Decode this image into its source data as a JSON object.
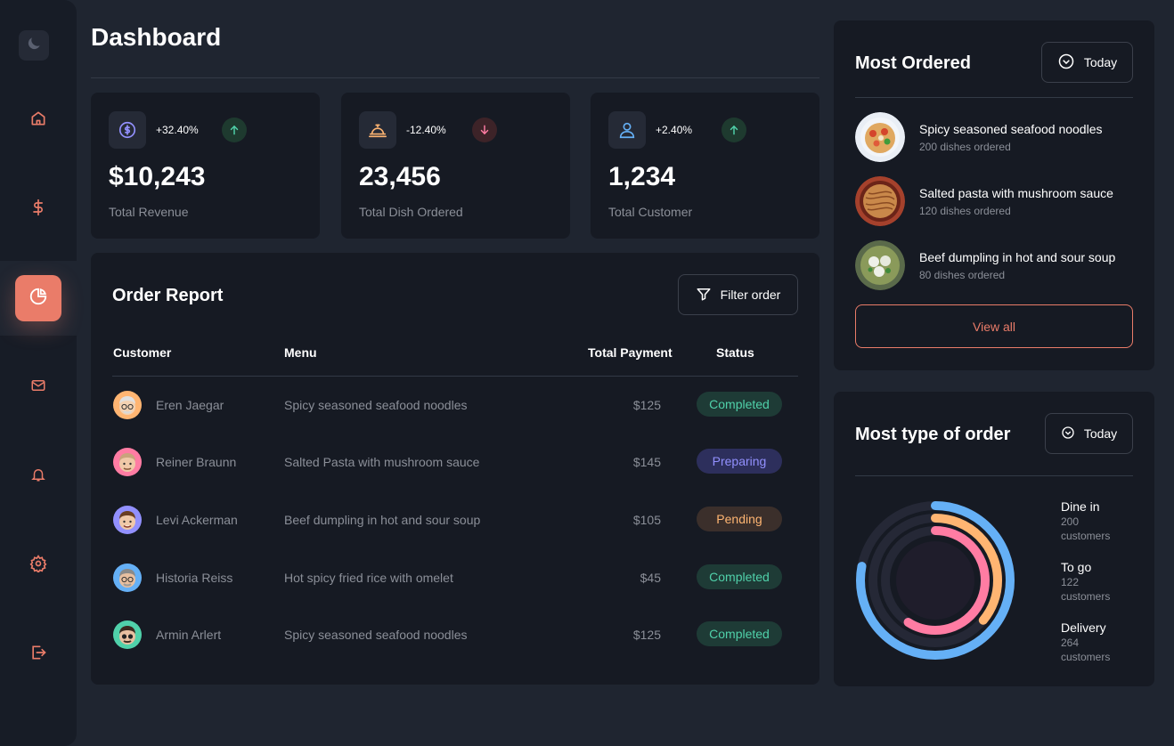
{
  "header": {
    "title": "Dashboard"
  },
  "sidebar": {
    "logo_icon": "moon-icon",
    "items": [
      {
        "name": "home",
        "icon": "home-icon"
      },
      {
        "name": "dollar",
        "icon": "dollar-icon"
      },
      {
        "name": "dashboard",
        "icon": "pie-chart-icon",
        "active": true
      },
      {
        "name": "mail",
        "icon": "mail-icon"
      },
      {
        "name": "notifications",
        "icon": "bell-icon"
      },
      {
        "name": "settings",
        "icon": "gear-icon"
      },
      {
        "name": "logout",
        "icon": "logout-icon"
      }
    ]
  },
  "stats": [
    {
      "icon": "dollar-circle-icon",
      "change": "+32.40%",
      "trend": "up",
      "value": "$10,243",
      "label": "Total Revenue"
    },
    {
      "icon": "dish-cloche-icon",
      "change": "-12.40%",
      "trend": "down",
      "value": "23,456",
      "label": "Total Dish Ordered"
    },
    {
      "icon": "user-icon",
      "change": "+2.40%",
      "trend": "up",
      "value": "1,234",
      "label": "Total Customer"
    }
  ],
  "report": {
    "title": "Order Report",
    "filter_label": "Filter order",
    "columns": [
      "Customer",
      "Menu",
      "Total Payment",
      "Status"
    ],
    "rows": [
      {
        "customer": "Eren Jaegar",
        "menu": "Spicy seasoned seafood noodles",
        "payment": "$125",
        "status": "Completed"
      },
      {
        "customer": "Reiner Braunn",
        "menu": "Salted Pasta with mushroom sauce",
        "payment": "$145",
        "status": "Preparing"
      },
      {
        "customer": "Levi Ackerman",
        "menu": "Beef dumpling in hot and sour soup",
        "payment": "$105",
        "status": "Pending"
      },
      {
        "customer": "Historia Reiss",
        "menu": "Hot spicy fried rice with omelet",
        "payment": "$45",
        "status": "Completed"
      },
      {
        "customer": "Armin Arlert",
        "menu": "Spicy seasoned seafood noodles",
        "payment": "$125",
        "status": "Completed"
      }
    ]
  },
  "most_ordered": {
    "title": "Most Ordered",
    "filter_label": "Today",
    "items": [
      {
        "name": "Spicy seasoned seafood noodles",
        "count": "200 dishes ordered"
      },
      {
        "name": "Salted pasta with mushroom sauce",
        "count": "120 dishes ordered"
      },
      {
        "name": "Beef dumpling in hot and sour soup",
        "count": "80 dishes ordered"
      }
    ],
    "view_all_label": "View all"
  },
  "order_types": {
    "title": "Most type of order",
    "filter_label": "Today",
    "items": [
      {
        "name": "Dine in",
        "count": "200",
        "unit": "customers",
        "color": "#ff7ca3"
      },
      {
        "name": "To go",
        "count": "122",
        "unit": "customers",
        "color": "#ffb572"
      },
      {
        "name": "Delivery",
        "count": "264",
        "unit": "customers",
        "color": "#65b0f6"
      }
    ]
  },
  "colors": {
    "accent": "#ea7c69",
    "completed_bg": "#1e3b36",
    "completed_fg": "#50d1aa",
    "preparing_bg": "#2d2f5c",
    "preparing_fg": "#9290fe",
    "pending_bg": "#3b2f2b",
    "pending_fg": "#ffb572"
  }
}
